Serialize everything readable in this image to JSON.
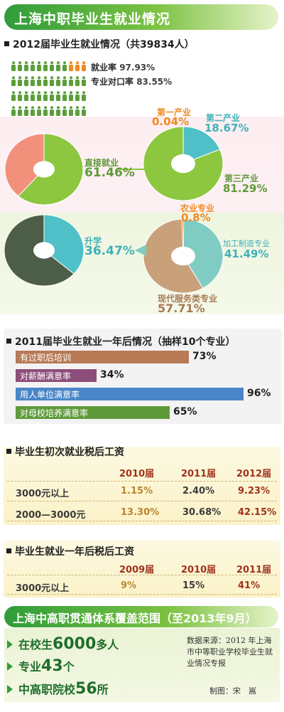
{
  "title": "上海中职毕业生就业情况",
  "section1": {
    "heading": "2012届毕业生就业情况（共39834人）",
    "employment_rate_label": "就业率",
    "employment_rate": "97.93%",
    "match_rate_label": "专业对口率",
    "match_rate": "83.55%",
    "icon_rows": [
      [
        "green",
        "green",
        "green",
        "green",
        "green",
        "green",
        "green",
        "green",
        "green",
        "orange",
        "orange",
        "orange"
      ],
      [
        "green",
        "green",
        "green",
        "green",
        "green",
        "green",
        "green",
        "green",
        "green",
        "green",
        "green",
        "green"
      ],
      [
        "green",
        "green",
        "green",
        "green",
        "green",
        "green",
        "green",
        "green",
        "green",
        "green",
        "green",
        "green"
      ],
      [
        "green",
        "green",
        "green",
        "green",
        "green",
        "green",
        "green",
        "green",
        "green",
        "green",
        "green",
        "green"
      ]
    ],
    "colors": {
      "green": "#5b9e3a",
      "orange": "#f08a1f"
    }
  },
  "chart_data": [
    {
      "type": "pie",
      "slices": [
        {
          "label": "直接就业",
          "value": 61.46,
          "color": "#8dc63f"
        },
        {
          "label": "",
          "value": 38.54,
          "color": "#f2917b"
        }
      ],
      "labels": {
        "name": "直接就业",
        "value": "61.46%"
      }
    },
    {
      "type": "pie",
      "slices": [
        {
          "label": "第一产业",
          "value": 0.04,
          "color": "#f08a1f"
        },
        {
          "label": "第二产业",
          "value": 18.67,
          "color": "#4fc0c7"
        },
        {
          "label": "第三产业",
          "value": 81.29,
          "color": "#8dc63f"
        }
      ],
      "labels": {
        "primary": {
          "name": "第一产业",
          "value": "0.04%"
        },
        "secondary": {
          "name": "第二产业",
          "value": "18.67%"
        },
        "tertiary": {
          "name": "第三产业",
          "value": "81.29%"
        }
      }
    },
    {
      "type": "pie",
      "slices": [
        {
          "label": "升学",
          "value": 36.47,
          "color": "#4fc0c7"
        },
        {
          "label": "",
          "value": 63.53,
          "color": "#4c5e47"
        }
      ],
      "labels": {
        "name": "升学",
        "value": "36.47%"
      }
    },
    {
      "type": "pie",
      "slices": [
        {
          "label": "农业专业",
          "value": 0.8,
          "color": "#f08a1f"
        },
        {
          "label": "加工制造专业",
          "value": 41.49,
          "color": "#7fccc3"
        },
        {
          "label": "现代服务类专业",
          "value": 57.71,
          "color": "#c8a07a"
        }
      ],
      "labels": {
        "agri": {
          "name": "农业专业",
          "value": "0.8%"
        },
        "mfg": {
          "name": "加工制造专业",
          "value": "41.49%"
        },
        "svc": {
          "name": "现代服务类专业",
          "value": "57.71%"
        }
      }
    },
    {
      "type": "bar",
      "title": "2011届毕业生就业一年后情况（抽样10个专业）",
      "categories": [
        "有过职后培训",
        "对薪酬满意率",
        "用人单位满意率",
        "对母校培养满意率"
      ],
      "values": [
        73,
        34,
        96,
        65
      ],
      "value_labels": [
        "73%",
        "34%",
        "96%",
        "65%"
      ],
      "colors": [
        "#b77a55",
        "#8c4d7a",
        "#4a86c7",
        "#5f9a3a"
      ],
      "xlim": [
        0,
        100
      ]
    },
    {
      "type": "table",
      "title": "毕业生初次就业税后工资",
      "columns": [
        "2010届",
        "2011届",
        "2012届"
      ],
      "rows": [
        {
          "label": "3000元以上",
          "values": [
            "1.15%",
            "2.40%",
            "9.23%"
          ]
        },
        {
          "label": "2000—3000元",
          "values": [
            "13.30%",
            "30.68%",
            "42.15%"
          ]
        }
      ]
    },
    {
      "type": "table",
      "title": "毕业生就业一年后税后工资",
      "columns": [
        "2009届",
        "2010届",
        "2011届"
      ],
      "rows": [
        {
          "label": "3000元以上",
          "values": [
            "9%",
            "15%",
            "41%"
          ]
        }
      ]
    }
  ],
  "coverage": {
    "heading": "上海中高职贯通体系覆盖范围（至2013年9月）",
    "items": [
      {
        "prefix": "在校生",
        "number": "6000",
        "suffix": "多人"
      },
      {
        "prefix": "专业",
        "number": "43",
        "suffix": "个"
      },
      {
        "prefix": "中高职院校",
        "number": "56",
        "suffix": "所"
      }
    ],
    "source": "数据来源：2012 年上海市中等职业学校毕业生就业情况专报",
    "maker": "制图：宋　嵩"
  }
}
